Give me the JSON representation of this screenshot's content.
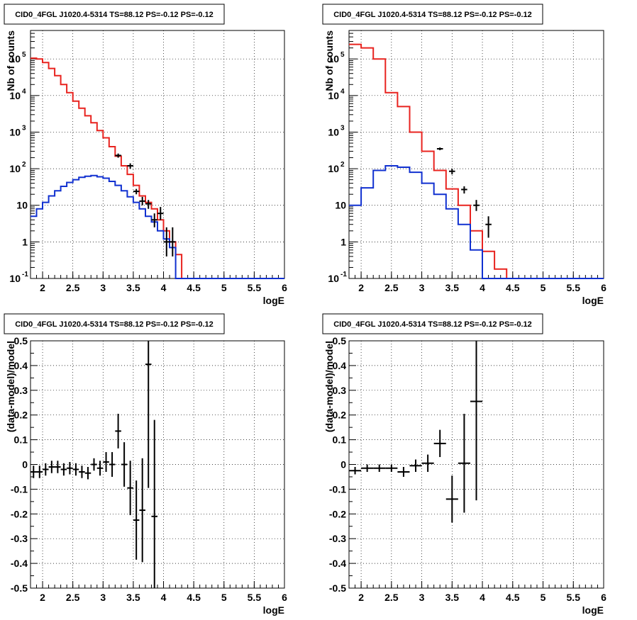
{
  "chart_data": [
    {
      "type": "step-histogram",
      "title": "CID0_4FGL J1020.4-5314 TS=88.12 PS=-0.12 PS=-0.12",
      "xlabel": "logE",
      "ylabel": "Nb of counts",
      "xlim": [
        1.8,
        6.0
      ],
      "ylim": [
        0.1,
        600000
      ],
      "yscale": "log",
      "grid": true,
      "x_ticks": [
        "2",
        "2.5",
        "3",
        "3.5",
        "4",
        "4.5",
        "5",
        "5.5",
        "6"
      ],
      "y_ticks": [
        {
          "label": "10",
          "sup": "-1",
          "value": 0.1
        },
        {
          "label": "1",
          "sup": "",
          "value": 1
        },
        {
          "label": "10",
          "sup": "",
          "value": 10
        },
        {
          "label": "10",
          "sup": "2",
          "value": 100
        },
        {
          "label": "10",
          "sup": "3",
          "value": 1000
        },
        {
          "label": "10",
          "sup": "4",
          "value": 10000
        },
        {
          "label": "10",
          "sup": "5",
          "value": 100000
        }
      ],
      "bin_edges": [
        1.8,
        1.9,
        2.0,
        2.1,
        2.2,
        2.3,
        2.4,
        2.5,
        2.6,
        2.7,
        2.8,
        2.9,
        3.0,
        3.1,
        3.2,
        3.3,
        3.4,
        3.5,
        3.6,
        3.7,
        3.8,
        3.9,
        4.0,
        4.1,
        4.2,
        4.3,
        4.4,
        4.5,
        4.6,
        4.7,
        4.8,
        4.9,
        5.0,
        5.1,
        5.2,
        5.3,
        5.4,
        5.5,
        5.6,
        5.7,
        5.8,
        5.9,
        6.0
      ],
      "series": [
        {
          "color": "#e8231f",
          "values": [
            105000,
            100000,
            80000,
            55000,
            35000,
            20000,
            12000,
            7000,
            4500,
            2800,
            1800,
            1100,
            700,
            400,
            220,
            120,
            70,
            35,
            18,
            12,
            8,
            4,
            2,
            1,
            0.45,
            0.1,
            0.1,
            0.1,
            0.1,
            0.1,
            0.1,
            0.1,
            0.1,
            0.1,
            0.1,
            0.1,
            0.1,
            0.1,
            0.1,
            0.1,
            0.1,
            0.1
          ]
        },
        {
          "color": "#1030d0",
          "values": [
            5,
            8,
            12,
            18,
            25,
            33,
            42,
            50,
            58,
            62,
            65,
            60,
            55,
            45,
            35,
            25,
            17,
            12,
            8,
            5,
            3.5,
            2,
            1.2,
            0.7,
            0.1,
            0.1,
            0.1,
            0.1,
            0.1,
            0.1,
            0.1,
            0.1,
            0.1,
            0.1,
            0.1,
            0.1,
            0.1,
            0.1,
            0.1,
            0.1,
            0.1,
            0.1
          ]
        }
      ],
      "points": [
        {
          "x": 3.25,
          "y": 230,
          "ylo": 200,
          "yhi": 260
        },
        {
          "x": 3.45,
          "y": 120,
          "ylo": 100,
          "yhi": 140
        },
        {
          "x": 3.55,
          "y": 24,
          "ylo": 20,
          "yhi": 28
        },
        {
          "x": 3.65,
          "y": 13,
          "ylo": 10,
          "yhi": 17
        },
        {
          "x": 3.75,
          "y": 11,
          "ylo": 8,
          "yhi": 14
        },
        {
          "x": 3.85,
          "y": 4,
          "ylo": 2.5,
          "yhi": 6
        },
        {
          "x": 3.95,
          "y": 6,
          "ylo": 4,
          "yhi": 9
        },
        {
          "x": 4.05,
          "y": 1,
          "ylo": 0.4,
          "yhi": 2.5
        },
        {
          "x": 4.15,
          "y": 1,
          "ylo": 0.4,
          "yhi": 2.5
        }
      ]
    },
    {
      "type": "step-histogram",
      "title": "CID0_4FGL J1020.4-5314 TS=88.12 PS=-0.12 PS=-0.12",
      "xlabel": "logE",
      "ylabel": "Nb of counts",
      "xlim": [
        1.8,
        6.0
      ],
      "ylim": [
        0.1,
        600000
      ],
      "yscale": "log",
      "grid": true,
      "x_ticks": [
        "2",
        "2.5",
        "3",
        "3.5",
        "4",
        "4.5",
        "5",
        "5.5",
        "6"
      ],
      "y_ticks": [
        {
          "label": "10",
          "sup": "-1",
          "value": 0.1
        },
        {
          "label": "1",
          "sup": "",
          "value": 1
        },
        {
          "label": "10",
          "sup": "",
          "value": 10
        },
        {
          "label": "10",
          "sup": "2",
          "value": 100
        },
        {
          "label": "10",
          "sup": "3",
          "value": 1000
        },
        {
          "label": "10",
          "sup": "4",
          "value": 10000
        },
        {
          "label": "10",
          "sup": "5",
          "value": 100000
        }
      ],
      "bin_edges": [
        1.8,
        2.0,
        2.2,
        2.4,
        2.6,
        2.8,
        3.0,
        3.2,
        3.4,
        3.6,
        3.8,
        4.0,
        4.2,
        4.4,
        4.6,
        4.8,
        5.0,
        5.2,
        5.4,
        5.6,
        5.8,
        6.0
      ],
      "series": [
        {
          "color": "#e8231f",
          "values": [
            250000,
            200000,
            100000,
            12000,
            5000,
            1000,
            300,
            90,
            28,
            10,
            2,
            0.55,
            0.18,
            0.1,
            0.1,
            0.1,
            0.1,
            0.1,
            0.1,
            0.1,
            0.1
          ]
        },
        {
          "color": "#1030d0",
          "values": [
            10,
            30,
            90,
            120,
            110,
            80,
            40,
            20,
            8,
            3,
            0.6,
            0.1,
            0.1,
            0.1,
            0.1,
            0.1,
            0.1,
            0.1,
            0.1,
            0.1,
            0.1
          ]
        }
      ],
      "points": [
        {
          "x": 3.3,
          "y": 350,
          "ylo": 320,
          "yhi": 380
        },
        {
          "x": 3.5,
          "y": 85,
          "ylo": 70,
          "yhi": 100
        },
        {
          "x": 3.7,
          "y": 27,
          "ylo": 21,
          "yhi": 33
        },
        {
          "x": 3.9,
          "y": 10,
          "ylo": 7,
          "yhi": 14
        },
        {
          "x": 4.1,
          "y": 3,
          "ylo": 1.3,
          "yhi": 5
        }
      ]
    },
    {
      "type": "scatter-errorbars",
      "title": "CID0_4FGL J1020.4-5314 TS=88.12 PS=-0.12 PS=-0.12",
      "xlabel": "logE",
      "ylabel": "(data-model)/model",
      "xlim": [
        1.8,
        6.0
      ],
      "ylim": [
        -0.5,
        0.5
      ],
      "grid": true,
      "x_ticks": [
        "2",
        "2.5",
        "3",
        "3.5",
        "4",
        "4.5",
        "5",
        "5.5",
        "6"
      ],
      "y_ticks": [
        "-0.5",
        "-0.4",
        "-0.3",
        "-0.2",
        "-0.1",
        "0",
        "0.1",
        "0.2",
        "0.3",
        "0.4",
        "0.5"
      ],
      "xerr": 0.05,
      "points": [
        {
          "x": 1.85,
          "y": -0.03,
          "err": 0.025
        },
        {
          "x": 1.95,
          "y": -0.03,
          "err": 0.025
        },
        {
          "x": 2.05,
          "y": -0.02,
          "err": 0.025
        },
        {
          "x": 2.15,
          "y": -0.01,
          "err": 0.025
        },
        {
          "x": 2.25,
          "y": -0.01,
          "err": 0.025
        },
        {
          "x": 2.35,
          "y": -0.02,
          "err": 0.025
        },
        {
          "x": 2.45,
          "y": -0.015,
          "err": 0.025
        },
        {
          "x": 2.55,
          "y": -0.02,
          "err": 0.025
        },
        {
          "x": 2.65,
          "y": -0.03,
          "err": 0.025
        },
        {
          "x": 2.75,
          "y": -0.035,
          "err": 0.025
        },
        {
          "x": 2.85,
          "y": 0.0,
          "err": 0.025
        },
        {
          "x": 2.95,
          "y": -0.015,
          "err": 0.03
        },
        {
          "x": 3.05,
          "y": 0.01,
          "err": 0.04
        },
        {
          "x": 3.15,
          "y": 0.0,
          "err": 0.05
        },
        {
          "x": 3.25,
          "y": 0.135,
          "err": 0.07
        },
        {
          "x": 3.35,
          "y": 0.0,
          "err": 0.09
        },
        {
          "x": 3.45,
          "y": -0.095,
          "err": 0.11
        },
        {
          "x": 3.55,
          "y": -0.225,
          "err": 0.16
        },
        {
          "x": 3.65,
          "y": -0.185,
          "err": 0.21
        },
        {
          "x": 3.75,
          "y": 0.405,
          "err": 0.5
        },
        {
          "x": 3.85,
          "y": -0.21,
          "err": 0.39
        }
      ]
    },
    {
      "type": "scatter-errorbars",
      "title": "CID0_4FGL J1020.4-5314 TS=88.12 PS=-0.12 PS=-0.12",
      "xlabel": "logE",
      "ylabel": "(data-model)/model",
      "xlim": [
        1.8,
        6.0
      ],
      "ylim": [
        -0.5,
        0.5
      ],
      "grid": true,
      "x_ticks": [
        "2",
        "2.5",
        "3",
        "3.5",
        "4",
        "4.5",
        "5",
        "5.5",
        "6"
      ],
      "y_ticks": [
        "-0.5",
        "-0.4",
        "-0.3",
        "-0.2",
        "-0.1",
        "0",
        "0.1",
        "0.2",
        "0.3",
        "0.4",
        "0.5"
      ],
      "xerr": 0.1,
      "points": [
        {
          "x": 1.9,
          "y": -0.025,
          "err": 0.015
        },
        {
          "x": 2.1,
          "y": -0.015,
          "err": 0.015
        },
        {
          "x": 2.3,
          "y": -0.015,
          "err": 0.015
        },
        {
          "x": 2.5,
          "y": -0.015,
          "err": 0.015
        },
        {
          "x": 2.7,
          "y": -0.03,
          "err": 0.02
        },
        {
          "x": 2.9,
          "y": -0.005,
          "err": 0.025
        },
        {
          "x": 3.1,
          "y": 0.005,
          "err": 0.035
        },
        {
          "x": 3.3,
          "y": 0.085,
          "err": 0.055
        },
        {
          "x": 3.5,
          "y": -0.14,
          "err": 0.095
        },
        {
          "x": 3.7,
          "y": 0.005,
          "err": 0.2
        },
        {
          "x": 3.9,
          "y": 0.255,
          "err": 0.4
        }
      ]
    }
  ]
}
